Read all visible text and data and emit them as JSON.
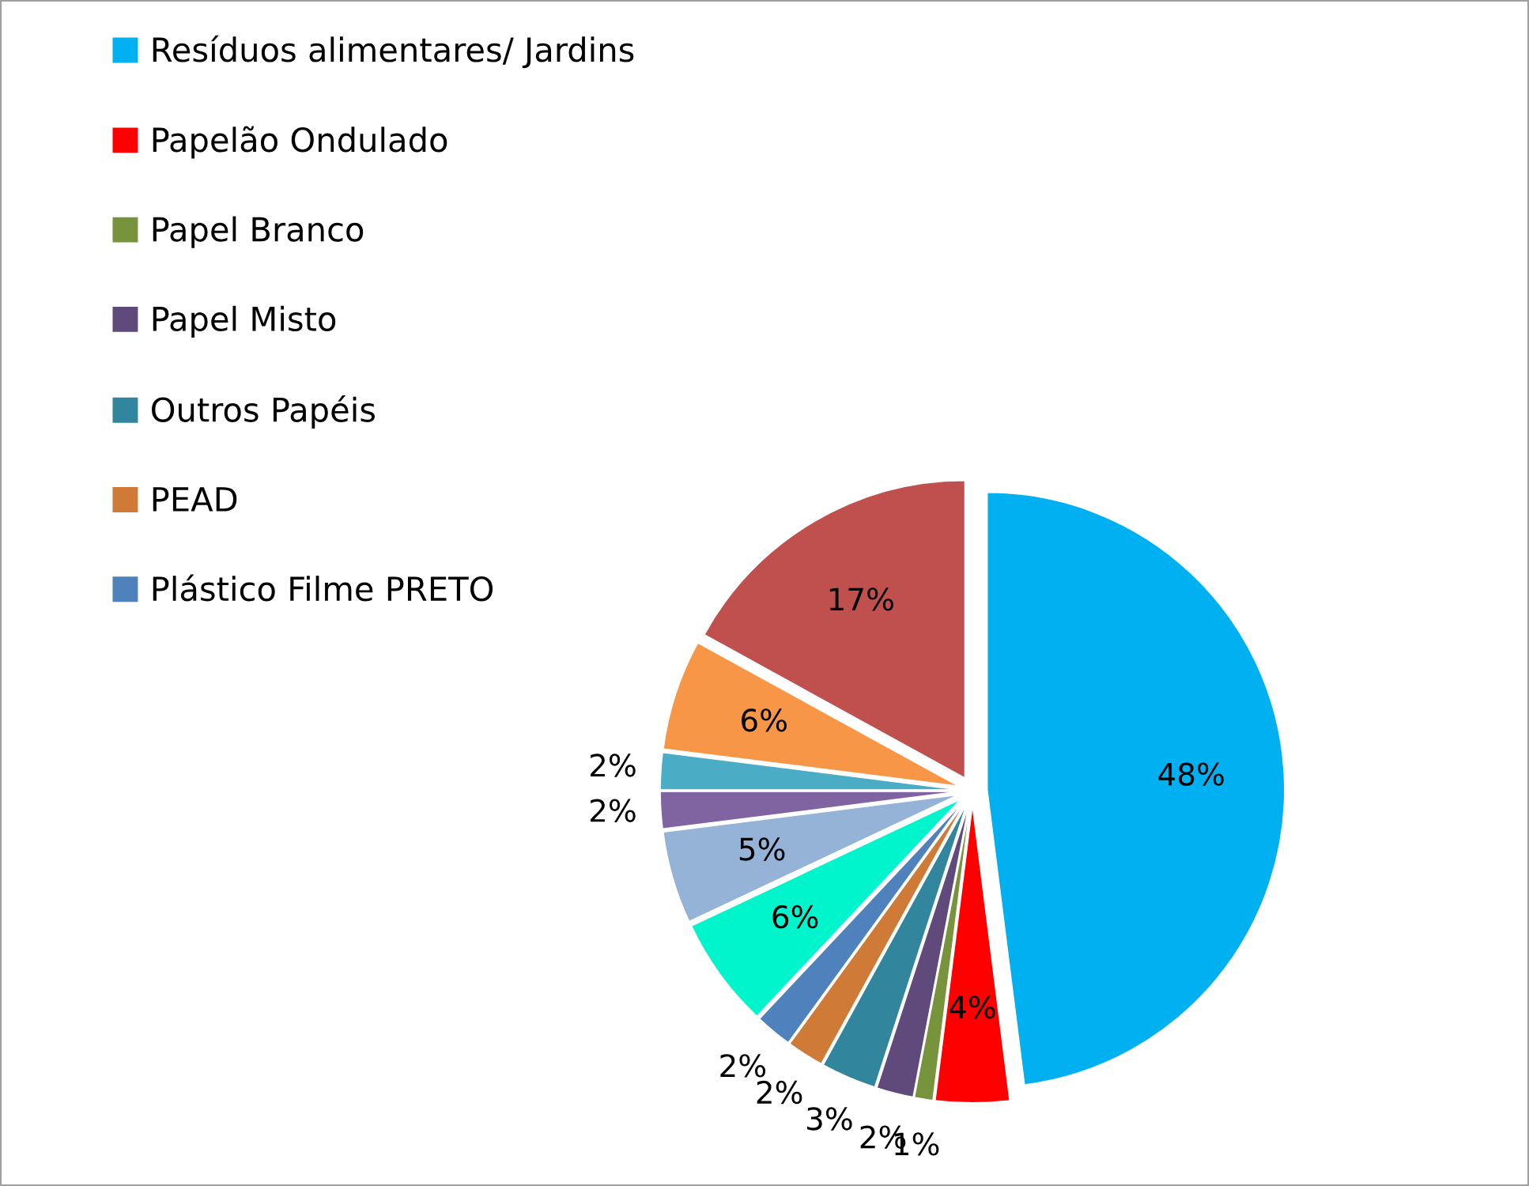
{
  "chart_data": {
    "type": "pie",
    "categories": [
      "Resíduos alimentares/ Jardins",
      "Papelão Ondulado",
      "Papel Branco",
      "Papel Misto",
      "Outros Papéis",
      "PEAD",
      "Plástico Filme PRETO",
      null,
      null,
      null,
      null,
      null,
      null
    ],
    "values": [
      48,
      4,
      1,
      2,
      3,
      2,
      2,
      6,
      5,
      2,
      2,
      6,
      17
    ],
    "colors": [
      "#00b0f0",
      "#ff0000",
      "#77933c",
      "#604a7b",
      "#31859c",
      "#d07a38",
      "#4f81bd",
      "#00f5cc",
      "#95b3d7",
      "#8064a2",
      "#4bacc6",
      "#f79646",
      "#c0504d"
    ],
    "value_labels": [
      "48%",
      "4%",
      "1%",
      "2%",
      "3%",
      "2%",
      "2%",
      "6%",
      "5%",
      "2%",
      "2%",
      "6%",
      "17%"
    ],
    "legend": "top left"
  }
}
